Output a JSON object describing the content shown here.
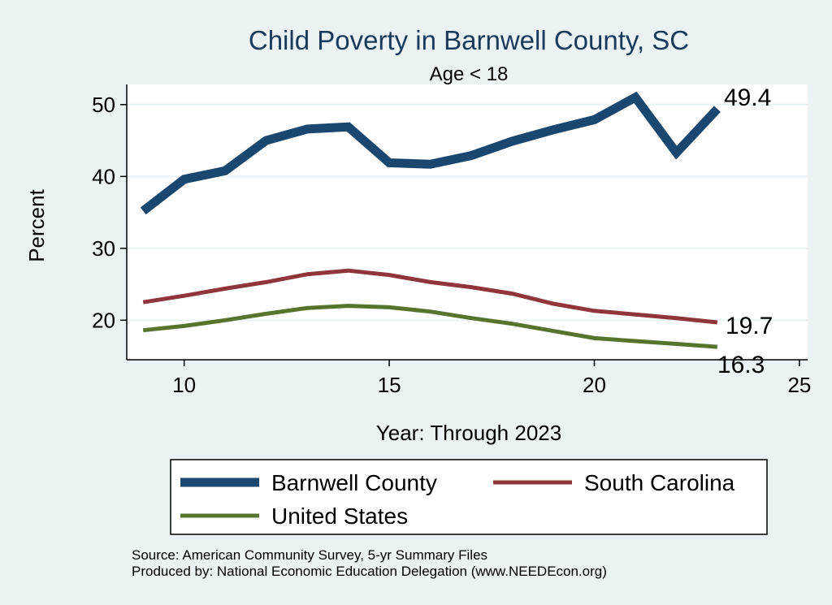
{
  "chart_data": {
    "type": "line",
    "title": "Child Poverty in Barnwell County, SC",
    "subtitle": "Age < 18",
    "xlabel": "Year: Through 2023",
    "ylabel": "Percent",
    "xlim": [
      8.6,
      25.2
    ],
    "ylim": [
      14.5,
      52.8
    ],
    "xticks": [
      10,
      15,
      20,
      25
    ],
    "yticks": [
      20,
      30,
      40,
      50
    ],
    "grid": true,
    "legend_position": "bottom",
    "x": [
      9,
      10,
      11,
      12,
      13,
      14,
      15,
      16,
      17,
      18,
      19,
      20,
      21,
      22,
      23
    ],
    "series": [
      {
        "name": "Barnwell County",
        "color": "#1a476f",
        "values": [
          35.2,
          39.6,
          40.8,
          45.0,
          46.6,
          46.9,
          41.9,
          41.7,
          42.9,
          44.9,
          46.5,
          47.9,
          51.0,
          43.3,
          49.4
        ],
        "end_label": "49.4"
      },
      {
        "name": "South Carolina",
        "color": "#90353b",
        "values": [
          22.5,
          23.4,
          24.4,
          25.3,
          26.4,
          26.9,
          26.3,
          25.3,
          24.6,
          23.7,
          22.3,
          21.3,
          20.8,
          20.3,
          19.7
        ],
        "end_label": "19.7"
      },
      {
        "name": "United States",
        "color": "#55752f",
        "values": [
          18.6,
          19.2,
          20.0,
          20.9,
          21.7,
          22.0,
          21.8,
          21.2,
          20.3,
          19.5,
          18.5,
          17.5,
          17.1,
          16.7,
          16.3
        ],
        "end_label": "16.3"
      }
    ],
    "source_lines": [
      "Source: American Community Survey, 5-yr Summary Files",
      "Produced by: National Economic Education Delegation (www.NEEDEcon.org)"
    ]
  }
}
